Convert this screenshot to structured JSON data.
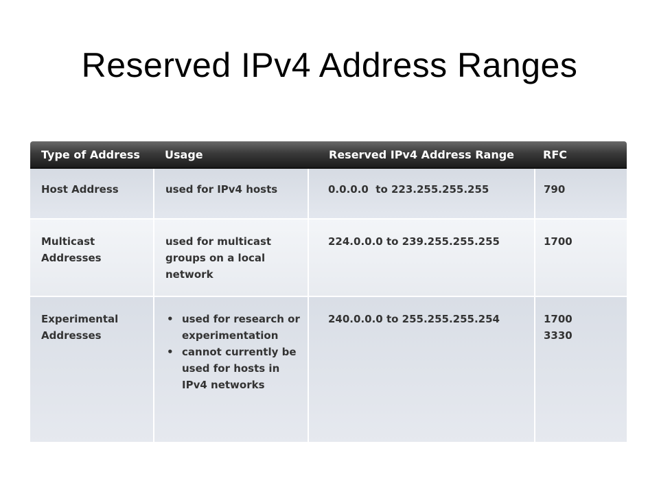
{
  "slide": {
    "title": "Reserved IPv4 Address Ranges"
  },
  "table": {
    "headers": {
      "type": "Type of Address",
      "usage": "Usage",
      "range": "Reserved IPv4 Address Range",
      "rfc": "RFC"
    },
    "rows": [
      {
        "type_lines": [
          "Host Address"
        ],
        "usage": "used for IPv4 hosts",
        "range": "0.0.0.0  to 223.255.255.255",
        "rfc": [
          "790"
        ]
      },
      {
        "type_lines": [
          "Multicast",
          "Addresses"
        ],
        "usage": "used for multicast groups on a local network",
        "range": "224.0.0.0 to 239.255.255.255",
        "rfc": [
          "1700"
        ]
      },
      {
        "type_lines": [
          "Experimental",
          "Addresses"
        ],
        "usage_bullets": [
          "used for research or experimentation",
          "cannot currently be used for hosts in IPv4 networks"
        ],
        "range": "240.0.0.0 to 255.255.255.254",
        "rfc": [
          "1700",
          "3330"
        ]
      }
    ]
  },
  "colors": {
    "header_bg": "#1c1c1c",
    "header_text": "#ffffff",
    "row_band_dark": "#dfe3ea",
    "row_band_light": "#f3f5f8",
    "cell_text": "#333333"
  }
}
